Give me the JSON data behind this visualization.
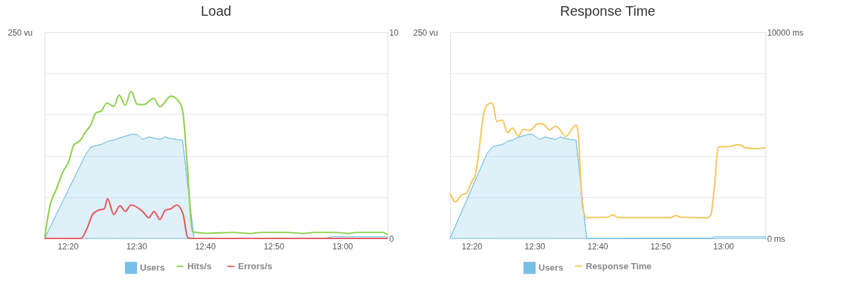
{
  "chart_data": [
    {
      "type": "line",
      "title": "Load",
      "legend": "bottom",
      "grid": "y",
      "xlim": [
        12.277,
        13.11
      ],
      "xticks": [
        {
          "value": 12.3333,
          "label": "12:20"
        },
        {
          "value": 12.5,
          "label": "12:30"
        },
        {
          "value": 12.6667,
          "label": "12:40"
        },
        {
          "value": 12.8333,
          "label": "12:50"
        },
        {
          "value": 13.0,
          "label": "13:00"
        }
      ],
      "ylim": [
        0,
        250
      ],
      "yticks": [
        {
          "value": 0,
          "label": null
        },
        {
          "value": 50,
          "label": null
        },
        {
          "value": 100,
          "label": null
        },
        {
          "value": 150,
          "label": null
        },
        {
          "value": 200,
          "label": null
        },
        {
          "value": 250,
          "label": "250 vu"
        }
      ],
      "y2lim": [
        0,
        10
      ],
      "y2ticks": [
        0,
        10
      ],
      "series": [
        {
          "name": "Users",
          "type": "area",
          "axis": "y",
          "color": "#74bfe8",
          "x": [
            12.277,
            12.377,
            12.39,
            12.415,
            12.432,
            12.443,
            12.46,
            12.487,
            12.502,
            12.515,
            12.53,
            12.557,
            12.57,
            12.584,
            12.612,
            12.64,
            12.958,
            12.975,
            13.11
          ],
          "values": [
            0,
            102,
            111,
            114,
            118,
            119,
            122,
            126,
            126,
            120,
            123,
            120,
            123,
            121,
            119,
            0,
            0,
            2,
            2
          ]
        },
        {
          "name": "Hits/s",
          "axis": "y2",
          "color": "#8fd14f",
          "x": [
            12.277,
            12.29,
            12.305,
            12.322,
            12.335,
            12.348,
            12.363,
            12.377,
            12.388,
            12.402,
            12.415,
            12.428,
            12.445,
            12.458,
            12.473,
            12.487,
            12.502,
            12.518,
            12.542,
            12.557,
            12.584,
            12.607,
            12.613,
            12.623,
            12.637,
            12.67,
            12.733,
            12.778,
            12.8,
            12.867,
            12.905,
            12.933,
            12.983,
            13.015,
            13.033,
            13.1,
            13.11
          ],
          "values": [
            0,
            1.58,
            2.36,
            3.24,
            3.69,
            4.52,
            4.74,
            5.18,
            5.46,
            6.09,
            6.18,
            6.57,
            6.4,
            6.95,
            6.46,
            7.14,
            6.51,
            6.49,
            6.79,
            6.38,
            6.9,
            6.51,
            6.12,
            3.69,
            0.31,
            0.25,
            0.29,
            0.24,
            0.29,
            0.29,
            0.24,
            0.29,
            0.29,
            0.24,
            0.29,
            0.29,
            0.18
          ]
        },
        {
          "name": "Errors/s",
          "axis": "y2",
          "color": "#e8595f",
          "x": [
            12.277,
            12.365,
            12.38,
            12.393,
            12.407,
            12.422,
            12.43,
            12.445,
            12.46,
            12.473,
            12.487,
            12.515,
            12.53,
            12.543,
            12.557,
            12.57,
            12.584,
            12.598,
            12.613,
            12.625,
            12.632,
            13.11
          ],
          "values": [
            0,
            0,
            0.48,
            1.14,
            1.36,
            1.44,
            1.92,
            1.16,
            1.58,
            1.31,
            1.62,
            1.31,
            1.0,
            1.31,
            0.92,
            1.36,
            1.44,
            1.62,
            1.2,
            0.03,
            0,
            0
          ]
        }
      ]
    },
    {
      "type": "line",
      "title": "Response Time",
      "legend": "bottom",
      "grid": "y",
      "xlim": [
        12.276,
        13.112
      ],
      "xticks": [
        {
          "value": 12.3333,
          "label": "12:20"
        },
        {
          "value": 12.5,
          "label": "12:30"
        },
        {
          "value": 12.6667,
          "label": "12:40"
        },
        {
          "value": 12.8333,
          "label": "12:50"
        },
        {
          "value": 13.0,
          "label": "13:00"
        }
      ],
      "ylim": [
        0,
        250
      ],
      "yticks": [
        {
          "value": 0,
          "label": null
        },
        {
          "value": 50,
          "label": null
        },
        {
          "value": 100,
          "label": null
        },
        {
          "value": 150,
          "label": null
        },
        {
          "value": 200,
          "label": null
        },
        {
          "value": 250,
          "label": "250 vu"
        }
      ],
      "y2lim": [
        0,
        10000
      ],
      "y2ticks": [
        {
          "value": 0,
          "label": "0 ms"
        },
        {
          "value": 10000,
          "label": "10000 ms"
        }
      ],
      "series": [
        {
          "name": "Users",
          "type": "area",
          "axis": "y",
          "color": "#74bfe8",
          "x": [
            12.276,
            12.373,
            12.388,
            12.415,
            12.43,
            12.442,
            12.453,
            12.482,
            12.495,
            12.513,
            12.528,
            12.555,
            12.568,
            12.582,
            12.61,
            12.638,
            12.97,
            12.977,
            13.112
          ],
          "values": [
            0,
            102,
            111,
            114,
            118,
            119,
            122,
            126,
            126,
            120,
            123,
            120,
            123,
            121,
            119,
            0,
            0,
            2,
            2
          ]
        },
        {
          "name": "Response Time",
          "axis": "y2",
          "color": "#f6c85f",
          "x": [
            12.276,
            12.291,
            12.305,
            12.32,
            12.335,
            12.342,
            12.352,
            12.365,
            12.377,
            12.388,
            12.4,
            12.415,
            12.428,
            12.442,
            12.457,
            12.47,
            12.487,
            12.51,
            12.525,
            12.54,
            12.555,
            12.568,
            12.582,
            12.61,
            12.614,
            12.627,
            12.638,
            12.693,
            12.707,
            12.722,
            12.783,
            12.862,
            12.873,
            12.887,
            12.958,
            12.967,
            12.977,
            12.987,
            13.015,
            13.042,
            13.06,
            13.09,
            13.112
          ],
          "values": [
            2190,
            1780,
            2080,
            2190,
            2800,
            3000,
            4130,
            6010,
            6510,
            6570,
            5680,
            5740,
            5130,
            5350,
            4960,
            5290,
            5240,
            5570,
            5520,
            5260,
            5440,
            5260,
            4940,
            5490,
            5350,
            1580,
            1010,
            1030,
            1140,
            1010,
            1010,
            1010,
            1110,
            1030,
            1000,
            1140,
            2580,
            4430,
            4460,
            4550,
            4390,
            4350,
            4410
          ]
        }
      ]
    }
  ]
}
